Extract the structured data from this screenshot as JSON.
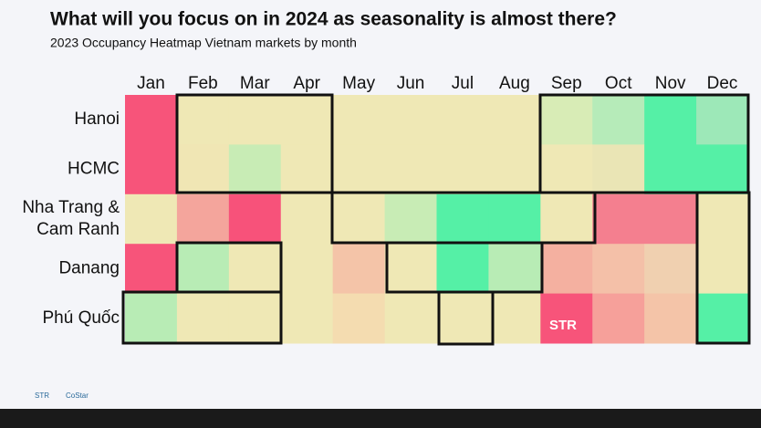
{
  "chart_data": {
    "type": "heatmap",
    "title": "What will you focus on in 2024 as seasonality is almost there?",
    "subtitle": "2023 Occupancy Heatmap Vietnam markets by month",
    "x": [
      "Jan",
      "Feb",
      "Mar",
      "Apr",
      "May",
      "Jun",
      "Jul",
      "Aug",
      "Sep",
      "Oct",
      "Nov",
      "Dec"
    ],
    "y": [
      [
        "Hanoi"
      ],
      [
        "HCMC"
      ],
      [
        "Nha Trang &",
        "Cam Ranh"
      ],
      [
        "Danang"
      ],
      [
        "Phú Quốc"
      ]
    ],
    "colors": [
      [
        "#f7547a",
        "#efe8b5",
        "#efe8b5",
        "#efe8b5",
        "#efe8b5",
        "#efe8b5",
        "#efe8b5",
        "#efe8b5",
        "#d8ecb6",
        "#b6ebb9",
        "#55f0a6",
        "#9de8b8"
      ],
      [
        "#f7547a",
        "#f0e6b4",
        "#c8ecb5",
        "#efe8b5",
        "#efe8b5",
        "#efe8b5",
        "#efe8b5",
        "#efe8b5",
        "#efe8b5",
        "#eae5b5",
        "#55f0a6",
        "#55f0a6"
      ],
      [
        "#efe8b5",
        "#f4a59c",
        "#f7527a",
        "#efe8b5",
        "#efe8b5",
        "#c8ecb5",
        "#55f0a6",
        "#55f0a6",
        "#efe8b5",
        "#f47f8f",
        "#f47f8f",
        "#efe8b5"
      ],
      [
        "#f7547a",
        "#b8ecb5",
        "#efe8b5",
        "#efe8b5",
        "#f4c4a8",
        "#efe8b5",
        "#55f0a6",
        "#b8ecb5",
        "#f4b0a0",
        "#f4c0a8",
        "#f0d0b0",
        "#efe8b5"
      ],
      [
        "#b8ecb5",
        "#efe8b5",
        "#efe8b5",
        "#efe8b5",
        "#f4dcb0",
        "#efe8b5",
        "#efe8b5",
        "#efe8b5",
        "#f7547a",
        "#f6a09a",
        "#f4c4a8",
        "#55f0a6"
      ]
    ],
    "watermark": "STR",
    "footer": [
      "STR",
      "CoStar"
    ]
  }
}
